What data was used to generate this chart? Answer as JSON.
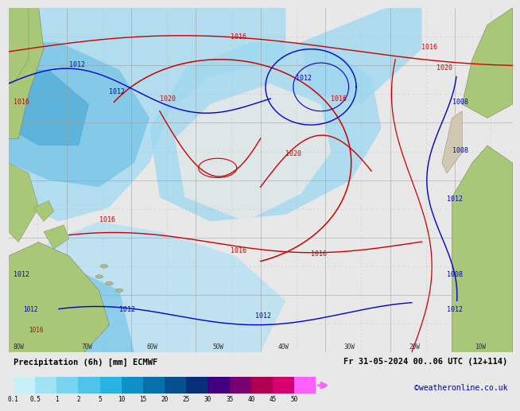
{
  "title_left": "Precipitation (6h) [mm] ECMWF",
  "title_right": "Fr 31-05-2024 00..06 UTC (12+114)",
  "credit": "©weatheronline.co.uk",
  "colorbar_labels": [
    "0.1",
    "0.5",
    "1",
    "2",
    "5",
    "10",
    "15",
    "20",
    "25",
    "30",
    "35",
    "40",
    "45",
    "50"
  ],
  "colorbar_colors": [
    "#c8f0f8",
    "#a0e4f4",
    "#78d4f0",
    "#50c4e8",
    "#28b4e0",
    "#1090c8",
    "#0870a8",
    "#065090",
    "#083078",
    "#400080",
    "#780070",
    "#b00050",
    "#d80070",
    "#ff60ff"
  ],
  "bg_color": "#e8e8e8",
  "ocean_color": "#d8eef8",
  "prec_light": "#b8e8f8",
  "prec_mid": "#88cce8",
  "prec_strong": "#60b0d8",
  "land_green": "#a8c878",
  "land_gray": "#d0c8b0",
  "land_africa": "#c8d890",
  "isobar_red": "#cc0000",
  "isobar_blue": "#0000cc",
  "grid_color": "#aaaaaa",
  "text_color": "#000000",
  "credit_color": "#0000bb",
  "fig_width": 6.34,
  "fig_height": 4.9
}
